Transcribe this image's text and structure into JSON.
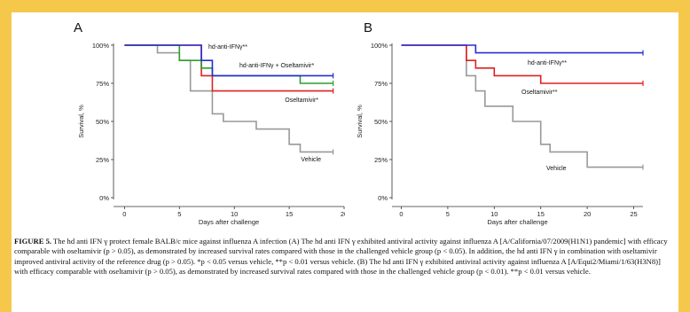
{
  "chart_data": [
    {
      "type": "line",
      "step": true,
      "panel_label": "A",
      "xlabel": "Days after challenge",
      "ylabel": "Survival, %",
      "xlim": [
        -1,
        20
      ],
      "ylim": [
        0,
        100
      ],
      "xticks": [
        0,
        5,
        10,
        15,
        20
      ],
      "yticks": [
        0,
        25,
        50,
        75,
        100
      ],
      "ytick_labels": [
        "0%",
        "25%",
        "50%",
        "75%",
        "100%"
      ],
      "series": [
        {
          "name": "hd-anti-IFNγ**",
          "color": "#2b2bd6",
          "x": [
            0,
            7,
            8,
            19
          ],
          "y": [
            100,
            90,
            80,
            80
          ]
        },
        {
          "name": "hd-anti-IFNγ + Oseltamivir*",
          "color": "#2e9e2e",
          "x": [
            0,
            5,
            7,
            8,
            11,
            16,
            19
          ],
          "y": [
            100,
            90,
            85,
            80,
            80,
            75,
            75
          ]
        },
        {
          "name": "Oseltamivir*",
          "color": "#e02020",
          "x": [
            0,
            7,
            8,
            19
          ],
          "y": [
            100,
            80,
            70,
            70
          ]
        },
        {
          "name": "Vehicle",
          "color": "#999999",
          "x": [
            0,
            3,
            5,
            6,
            8,
            9,
            12,
            15,
            16,
            19
          ],
          "y": [
            100,
            95,
            90,
            70,
            55,
            50,
            45,
            35,
            30,
            30
          ]
        }
      ]
    },
    {
      "type": "line",
      "step": true,
      "panel_label": "B",
      "xlabel": "Days after challenge",
      "ylabel": "Survival, %",
      "xlim": [
        -1,
        26
      ],
      "ylim": [
        0,
        100
      ],
      "xticks": [
        0,
        5,
        10,
        15,
        20,
        25
      ],
      "yticks": [
        0,
        25,
        50,
        75,
        100
      ],
      "ytick_labels": [
        "0%",
        "25%",
        "50%",
        "75%",
        "100%"
      ],
      "series": [
        {
          "name": "hd-anti-IFNγ**",
          "color": "#2b2bd6",
          "x": [
            0,
            8,
            26
          ],
          "y": [
            100,
            95,
            95
          ]
        },
        {
          "name": "Oseltamivir**",
          "color": "#e02020",
          "x": [
            0,
            7,
            8,
            10,
            15,
            26
          ],
          "y": [
            100,
            90,
            85,
            80,
            75,
            75
          ]
        },
        {
          "name": "Vehicle",
          "color": "#999999",
          "x": [
            0,
            7,
            8,
            9,
            12,
            15,
            16,
            20,
            26
          ],
          "y": [
            100,
            80,
            70,
            60,
            50,
            35,
            30,
            20,
            20
          ]
        }
      ]
    }
  ],
  "caption": {
    "figure_label": "FIGURE 5.",
    "text": "The hd anti IFN γ protect female BALB/c mice against influenza A infection (A) The hd anti IFN γ exhibited antiviral activity against influenza A [A/California/07/2009(H1N1) pandemic] with efficacy comparable with oseltamivir (p > 0.05), as demonstrated by increased survival rates compared with those in the challenged vehicle group (p < 0.05). In addition, the hd anti IFN γ in combination with oseltamivir improved antiviral activity of the reference drug (p > 0.05). *p < 0.05 versus vehicle, **p < 0.01 versus vehicle. (B) The hd anti IFN γ exhibited antiviral activity against influenza A [A/Equi2/Miami/1/63(H3N8)] with efficacy comparable with oseltamivir (p > 0.05), as demonstrated by increased survival rates compared with those in the challenged vehicle group (p < 0.01). **p < 0.01 versus vehicle."
  }
}
